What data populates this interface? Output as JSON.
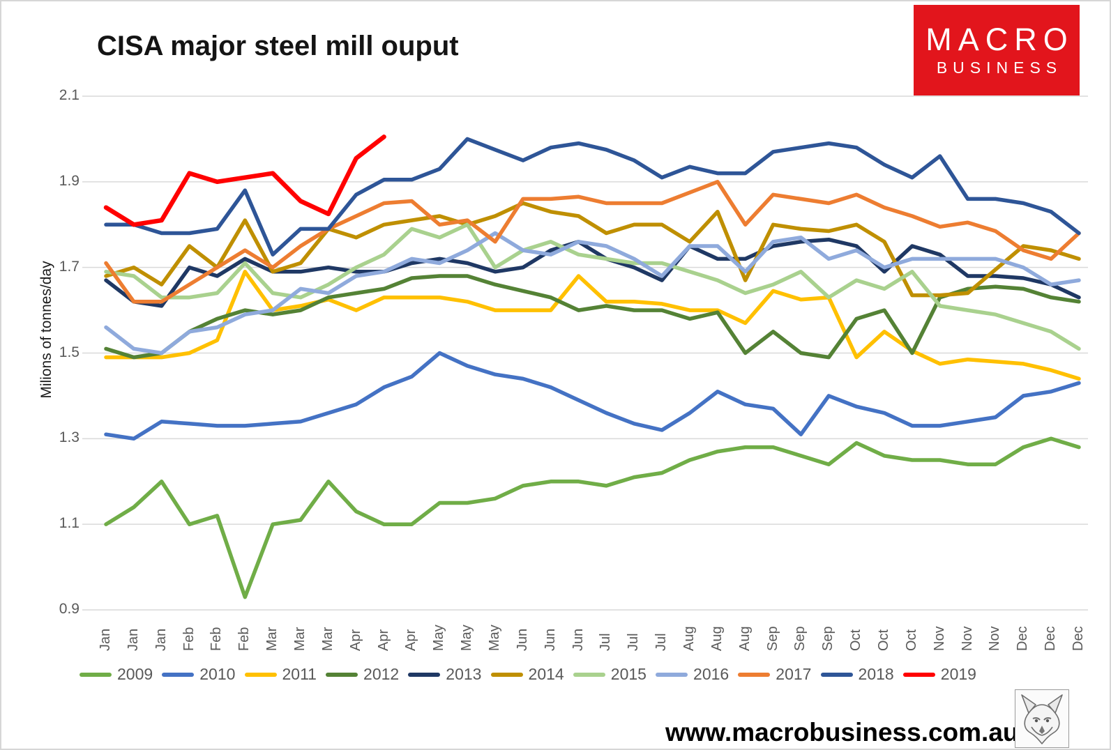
{
  "page": {
    "background": "#ffffff",
    "border_color": "#d6d6d6"
  },
  "header": {
    "title": "CISA major steel mill ouput"
  },
  "logo": {
    "line1": "MACRO",
    "line2": "BUSINESS",
    "bg_color": "#e2151c",
    "text_color": "#ffffff"
  },
  "footer": {
    "url": "www.macrobusiness.com.au",
    "fox_icon": "fox-sketch"
  },
  "chart_data": {
    "type": "line",
    "title": "CISA major steel mill ouput",
    "xlabel": "",
    "ylabel": "Milions of tonnes/day",
    "ylim": [
      0.9,
      2.1
    ],
    "yticks": [
      0.9,
      1.1,
      1.3,
      1.5,
      1.7,
      1.9,
      2.1
    ],
    "grid": true,
    "gridline_color": "#d9d9d9",
    "legend_position": "bottom",
    "x_labels": [
      "Jan",
      "Jan",
      "Jan",
      "Feb",
      "Feb",
      "Feb",
      "Mar",
      "Mar",
      "Mar",
      "Apr",
      "Apr",
      "Apr",
      "May",
      "May",
      "May",
      "Jun",
      "Jun",
      "Jun",
      "Jul",
      "Jul",
      "Jul",
      "Aug",
      "Aug",
      "Aug",
      "Sep",
      "Sep",
      "Sep",
      "Oct",
      "Oct",
      "Oct",
      "Nov",
      "Nov",
      "Nov",
      "Dec",
      "Dec",
      "Dec"
    ],
    "series": [
      {
        "name": "2009",
        "color": "#70AD47",
        "values": [
          1.1,
          1.14,
          1.2,
          1.1,
          1.12,
          0.93,
          1.1,
          1.11,
          1.2,
          1.13,
          1.1,
          1.1,
          1.15,
          1.15,
          1.16,
          1.19,
          1.2,
          1.2,
          1.19,
          1.21,
          1.22,
          1.25,
          1.27,
          1.28,
          1.28,
          1.26,
          1.24,
          1.29,
          1.26,
          1.25,
          1.25,
          1.24,
          1.24,
          1.28,
          1.3,
          1.28
        ]
      },
      {
        "name": "2010",
        "color": "#4472C4",
        "values": [
          1.31,
          1.3,
          1.34,
          1.335,
          1.33,
          1.33,
          1.335,
          1.34,
          1.36,
          1.38,
          1.42,
          1.445,
          1.5,
          1.47,
          1.45,
          1.44,
          1.42,
          1.39,
          1.36,
          1.335,
          1.32,
          1.36,
          1.41,
          1.38,
          1.37,
          1.31,
          1.4,
          1.375,
          1.36,
          1.33,
          1.33,
          1.34,
          1.35,
          1.4,
          1.41,
          1.43
        ]
      },
      {
        "name": "2011",
        "color": "#FFC000",
        "values": [
          1.49,
          1.49,
          1.49,
          1.5,
          1.53,
          1.69,
          1.6,
          1.61,
          1.625,
          1.6,
          1.63,
          1.63,
          1.63,
          1.62,
          1.6,
          1.6,
          1.6,
          1.68,
          1.62,
          1.62,
          1.615,
          1.6,
          1.6,
          1.57,
          1.645,
          1.625,
          1.63,
          1.49,
          1.55,
          1.505,
          1.475,
          1.485,
          1.48,
          1.475,
          1.46,
          1.44
        ]
      },
      {
        "name": "2012",
        "color": "#548235",
        "values": [
          1.51,
          1.49,
          1.5,
          1.55,
          1.58,
          1.6,
          1.59,
          1.6,
          1.63,
          1.64,
          1.65,
          1.675,
          1.68,
          1.68,
          1.66,
          1.645,
          1.63,
          1.6,
          1.61,
          1.6,
          1.6,
          1.58,
          1.595,
          1.5,
          1.55,
          1.5,
          1.49,
          1.58,
          1.6,
          1.5,
          1.63,
          1.65,
          1.655,
          1.65,
          1.63,
          1.62
        ]
      },
      {
        "name": "2013",
        "color": "#1F3864",
        "values": [
          1.67,
          1.62,
          1.61,
          1.7,
          1.68,
          1.72,
          1.69,
          1.69,
          1.7,
          1.69,
          1.69,
          1.71,
          1.72,
          1.71,
          1.69,
          1.7,
          1.74,
          1.76,
          1.72,
          1.7,
          1.67,
          1.75,
          1.72,
          1.72,
          1.75,
          1.76,
          1.765,
          1.75,
          1.69,
          1.75,
          1.73,
          1.68,
          1.68,
          1.675,
          1.66,
          1.63
        ]
      },
      {
        "name": "2014",
        "color": "#BF8F00",
        "values": [
          1.68,
          1.7,
          1.66,
          1.75,
          1.7,
          1.81,
          1.69,
          1.71,
          1.79,
          1.77,
          1.8,
          1.81,
          1.82,
          1.8,
          1.82,
          1.85,
          1.83,
          1.82,
          1.78,
          1.8,
          1.8,
          1.76,
          1.83,
          1.67,
          1.8,
          1.79,
          1.785,
          1.8,
          1.76,
          1.635,
          1.635,
          1.64,
          1.695,
          1.75,
          1.74,
          1.72
        ]
      },
      {
        "name": "2015",
        "color": "#A9D18E",
        "values": [
          1.69,
          1.68,
          1.63,
          1.63,
          1.64,
          1.71,
          1.64,
          1.63,
          1.66,
          1.7,
          1.73,
          1.79,
          1.77,
          1.8,
          1.7,
          1.74,
          1.76,
          1.73,
          1.72,
          1.71,
          1.71,
          1.69,
          1.67,
          1.64,
          1.66,
          1.69,
          1.63,
          1.67,
          1.65,
          1.69,
          1.61,
          1.6,
          1.59,
          1.57,
          1.55,
          1.51
        ]
      },
      {
        "name": "2016",
        "color": "#8FAADC",
        "values": [
          1.56,
          1.51,
          1.5,
          1.55,
          1.56,
          1.59,
          1.6,
          1.65,
          1.64,
          1.68,
          1.69,
          1.72,
          1.71,
          1.74,
          1.78,
          1.74,
          1.73,
          1.76,
          1.75,
          1.72,
          1.68,
          1.75,
          1.75,
          1.69,
          1.76,
          1.77,
          1.72,
          1.74,
          1.7,
          1.72,
          1.72,
          1.72,
          1.72,
          1.7,
          1.66,
          1.67
        ]
      },
      {
        "name": "2017",
        "color": "#ED7D31",
        "values": [
          1.71,
          1.62,
          1.62,
          1.66,
          1.7,
          1.74,
          1.7,
          1.75,
          1.79,
          1.82,
          1.85,
          1.855,
          1.8,
          1.81,
          1.76,
          1.86,
          1.86,
          1.865,
          1.85,
          1.85,
          1.85,
          1.875,
          1.9,
          1.8,
          1.87,
          1.86,
          1.85,
          1.87,
          1.84,
          1.82,
          1.795,
          1.805,
          1.785,
          1.74,
          1.72,
          1.78
        ]
      },
      {
        "name": "2018",
        "color": "#2E5597",
        "values": [
          1.8,
          1.8,
          1.78,
          1.78,
          1.79,
          1.88,
          1.73,
          1.79,
          1.79,
          1.87,
          1.905,
          1.905,
          1.93,
          2.0,
          1.975,
          1.95,
          1.98,
          1.99,
          1.975,
          1.95,
          1.91,
          1.935,
          1.92,
          1.92,
          1.97,
          1.98,
          1.99,
          1.98,
          1.94,
          1.91,
          1.96,
          1.86,
          1.86,
          1.85,
          1.83,
          1.78
        ]
      },
      {
        "name": "2019",
        "color": "#FF0000",
        "values": [
          1.84,
          1.8,
          1.81,
          1.92,
          1.9,
          1.91,
          1.92,
          1.855,
          1.825,
          1.955,
          2.005
        ]
      }
    ]
  }
}
